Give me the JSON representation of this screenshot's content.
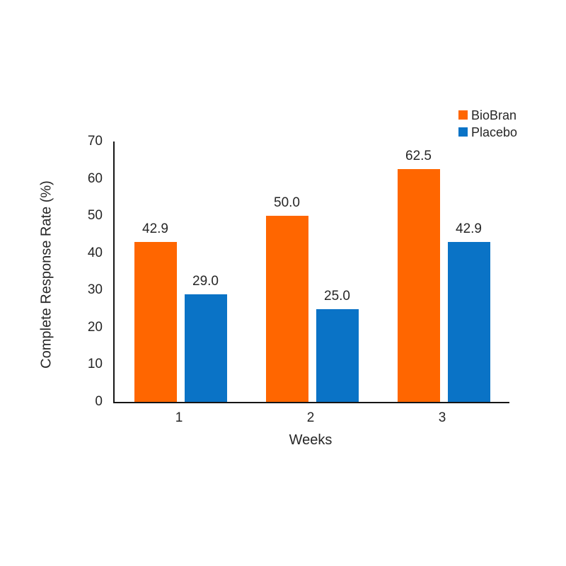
{
  "chart_data": {
    "type": "bar",
    "title": "",
    "categories": [
      "1",
      "2",
      "3"
    ],
    "series": [
      {
        "name": "BioBran",
        "color": "#FF6600",
        "values": [
          42.9,
          50.0,
          62.5
        ]
      },
      {
        "name": "Placebo",
        "color": "#0A73C6",
        "values": [
          29.0,
          25.0,
          42.9
        ]
      }
    ],
    "data_labels": {
      "BioBran": [
        "42.9",
        "50.0",
        "62.5"
      ],
      "Placebo": [
        "29.0",
        "25.0",
        "42.9"
      ]
    },
    "xlabel": "Weeks",
    "ylabel": "Complete Response Rate (%)",
    "ylim": [
      0,
      70
    ],
    "yticks": [
      0,
      10,
      20,
      30,
      40,
      50,
      60,
      70
    ],
    "grid": false,
    "legend_position": "top-right",
    "axis_color": "#161616",
    "text_color": "#262626",
    "background_color": "#ffffff"
  }
}
